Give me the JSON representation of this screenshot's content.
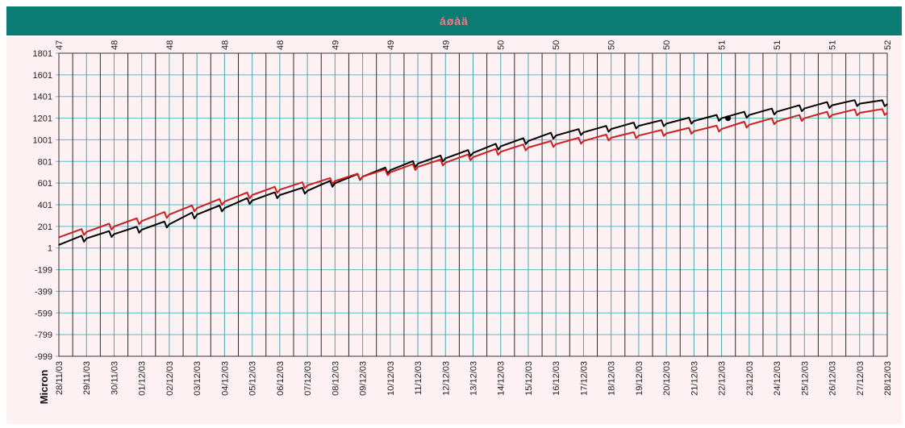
{
  "header": {
    "title": "áøàä"
  },
  "colors": {
    "header_bg": "#0b7c74",
    "title_text": "#f27b86",
    "panel_bg": "#fdf1f4",
    "grid_teal": "#4aa7b0",
    "grid_dark": "#2a2a2a",
    "grid_horizontal": "#5dbcc4",
    "series_black": "#000000",
    "series_red": "#cc1f1f"
  },
  "chart_data": {
    "type": "line",
    "title": "",
    "ylabel": "Micron",
    "xlabel": "",
    "ylim": [
      -999,
      1801
    ],
    "y_ticks": [
      1801,
      1601,
      1401,
      1201,
      1001,
      801,
      601,
      401,
      201,
      1,
      -199,
      -399,
      -599,
      -799,
      -999
    ],
    "x_dates": [
      "28/11/03",
      "29/11/03",
      "30/11/03",
      "01/12/03",
      "02/12/03",
      "03/12/03",
      "04/12/03",
      "05/12/03",
      "06/12/03",
      "07/12/03",
      "08/12/03",
      "09/12/03",
      "10/12/03",
      "11/12/03",
      "12/12/03",
      "13/12/03",
      "14/12/03",
      "15/12/03",
      "16/12/03",
      "17/12/03",
      "18/12/03",
      "19/12/03",
      "20/12/03",
      "21/12/03",
      "22/12/03",
      "23/12/03",
      "24/12/03",
      "25/12/03",
      "26/12/03",
      "27/12/03",
      "28/12/03"
    ],
    "top_week_labels": [
      "47",
      "48",
      "48",
      "48",
      "48",
      "49",
      "49",
      "49",
      "50",
      "50",
      "50",
      "50",
      "51",
      "51",
      "51",
      "52"
    ],
    "grid": true,
    "series": [
      {
        "color": "#000000",
        "values": [
          30,
          90,
          130,
          170,
          220,
          310,
          370,
          440,
          490,
          530,
          600,
          660,
          720,
          780,
          830,
          880,
          940,
          990,
          1040,
          1070,
          1100,
          1130,
          1150,
          1175,
          1200,
          1230,
          1260,
          1290,
          1320,
          1335,
          1330
        ]
      },
      {
        "color": "#cc1f1f",
        "values": [
          100,
          150,
          200,
          250,
          310,
          370,
          430,
          490,
          540,
          580,
          620,
          660,
          700,
          750,
          790,
          840,
          890,
          930,
          960,
          990,
          1020,
          1040,
          1060,
          1080,
          1100,
          1140,
          1170,
          1200,
          1230,
          1250,
          1250
        ]
      }
    ],
    "annotations": [
      {
        "date": "22/12/03",
        "value": 1200,
        "type": "marker",
        "color": "#000000"
      }
    ]
  }
}
